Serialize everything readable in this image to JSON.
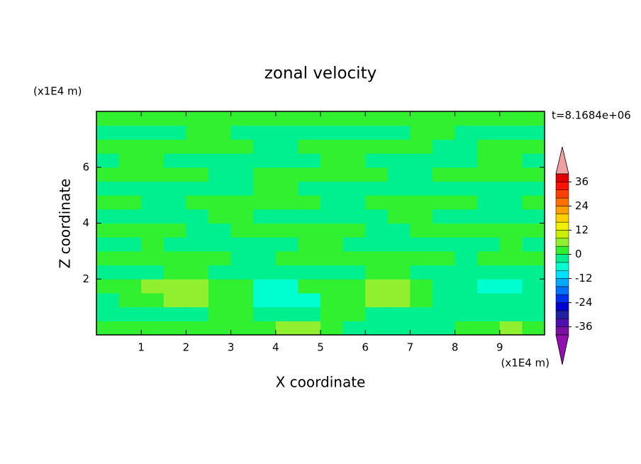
{
  "chart_data": {
    "type": "contour",
    "title": "zonal velocity",
    "x_label": "X coordinate",
    "y_label": "Z coordinate",
    "x_units": "(x1E4 m)",
    "y_units": "(x1E4 m)",
    "annotation": "t=8.1684e+06",
    "xlim": [
      0,
      10
    ],
    "ylim": [
      0,
      8
    ],
    "xticks": [
      1,
      2,
      3,
      4,
      5,
      6,
      7,
      8,
      9
    ],
    "yticks": [
      2,
      4,
      6
    ],
    "x": [
      0.25,
      0.75,
      1.25,
      1.75,
      2.25,
      2.75,
      3.25,
      3.75,
      4.25,
      4.75,
      5.25,
      5.75,
      6.25,
      6.75,
      7.25,
      7.75,
      8.25,
      8.75,
      9.25,
      9.75
    ],
    "z": [
      0.25,
      0.75,
      1.25,
      1.75,
      2.25,
      2.75,
      3.25,
      3.75,
      4.25,
      4.75,
      5.25,
      5.75,
      6.25,
      6.75,
      7.25,
      7.75
    ],
    "values": [
      [
        2,
        2,
        2,
        2,
        2,
        2,
        2,
        2,
        6,
        6,
        2,
        -2,
        -2,
        -2,
        -2,
        -2,
        2,
        2,
        6,
        2
      ],
      [
        -2,
        -2,
        -2,
        -2,
        -2,
        2,
        2,
        -2,
        -2,
        -2,
        2,
        2,
        -2,
        -2,
        -2,
        -2,
        -2,
        -2,
        -2,
        -2
      ],
      [
        -2,
        2,
        2,
        6,
        6,
        2,
        2,
        -6,
        -6,
        -6,
        2,
        2,
        6,
        6,
        2,
        -2,
        -2,
        -2,
        -2,
        -2
      ],
      [
        2,
        2,
        6,
        6,
        6,
        2,
        2,
        -6,
        -6,
        2,
        2,
        2,
        6,
        6,
        2,
        -2,
        -2,
        -6,
        -6,
        -2
      ],
      [
        -2,
        -2,
        -2,
        2,
        2,
        -2,
        -2,
        -2,
        -2,
        -2,
        -2,
        -2,
        2,
        2,
        -2,
        -2,
        -2,
        -2,
        -2,
        -2
      ],
      [
        2,
        2,
        2,
        2,
        2,
        2,
        -2,
        -2,
        2,
        2,
        2,
        2,
        2,
        2,
        2,
        2,
        -2,
        2,
        2,
        2
      ],
      [
        -2,
        -2,
        2,
        -2,
        -2,
        -2,
        -2,
        -2,
        -2,
        2,
        2,
        -2,
        -2,
        -2,
        -2,
        -2,
        -2,
        -2,
        2,
        -2
      ],
      [
        2,
        2,
        2,
        2,
        -2,
        -2,
        2,
        2,
        2,
        2,
        2,
        2,
        -2,
        -2,
        2,
        2,
        2,
        2,
        2,
        2
      ],
      [
        -2,
        -2,
        -2,
        -2,
        -2,
        2,
        2,
        -2,
        -2,
        -2,
        -2,
        -2,
        -2,
        2,
        2,
        -2,
        -2,
        -2,
        -2,
        -2
      ],
      [
        2,
        2,
        -2,
        -2,
        2,
        2,
        2,
        2,
        2,
        2,
        -2,
        -2,
        2,
        2,
        2,
        2,
        2,
        -2,
        -2,
        2
      ],
      [
        -2,
        -2,
        -2,
        -2,
        -2,
        -2,
        -2,
        2,
        2,
        -2,
        -2,
        -2,
        -2,
        -2,
        -2,
        -2,
        -2,
        -2,
        -2,
        -2
      ],
      [
        2,
        2,
        2,
        2,
        2,
        -2,
        -2,
        2,
        2,
        2,
        2,
        2,
        2,
        -2,
        -2,
        2,
        2,
        2,
        2,
        2
      ],
      [
        -2,
        2,
        2,
        -2,
        -2,
        -2,
        -2,
        -2,
        -2,
        -2,
        2,
        2,
        -2,
        -2,
        -2,
        -2,
        -2,
        2,
        2,
        -2
      ],
      [
        2,
        2,
        2,
        2,
        2,
        2,
        2,
        -2,
        -2,
        2,
        2,
        2,
        2,
        2,
        2,
        -2,
        -2,
        2,
        2,
        2
      ],
      [
        -2,
        -2,
        -2,
        -2,
        2,
        2,
        -2,
        -2,
        -2,
        -2,
        -2,
        -2,
        -2,
        -2,
        2,
        2,
        -2,
        -2,
        -2,
        -2
      ],
      [
        2,
        2,
        2,
        2,
        2,
        2,
        2,
        2,
        2,
        2,
        2,
        2,
        2,
        2,
        2,
        2,
        2,
        2,
        2,
        2
      ]
    ],
    "levels": [
      -40,
      -36,
      -32,
      -28,
      -24,
      -20,
      -16,
      -12,
      -8,
      -4,
      0,
      4,
      8,
      12,
      16,
      20,
      24,
      28,
      32,
      36,
      40
    ],
    "level_colors": [
      "#7a10a0",
      "#5010b0",
      "#2020a0",
      "#0000d0",
      "#0030f0",
      "#0070ff",
      "#00a8ff",
      "#00e0ff",
      "#00ffd0",
      "#00f090",
      "#30f030",
      "#90f030",
      "#c8f000",
      "#f0f000",
      "#ffd000",
      "#ffa000",
      "#ff7000",
      "#ff4000",
      "#ff1000",
      "#e00000"
    ],
    "over_color": "#f0a0a0",
    "under_color": "#9010b0",
    "colorbar_ticks": [
      -36,
      -24,
      -12,
      0,
      12,
      24,
      36
    ]
  }
}
